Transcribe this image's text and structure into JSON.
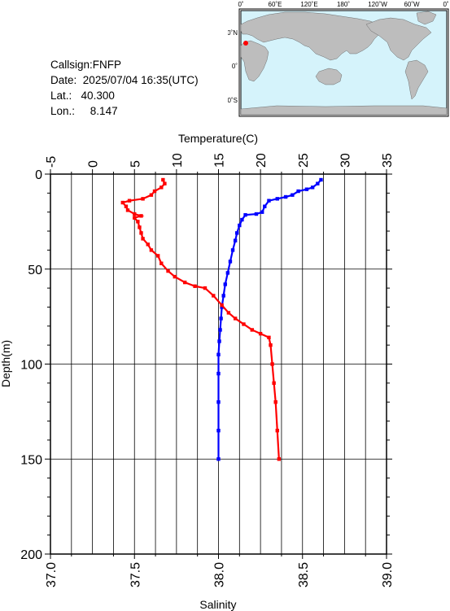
{
  "station": {
    "callsign_line": "Callsign:FNFP",
    "date_label": "Date:",
    "date_value": "2025/07/04 16:35(UTC)",
    "lat_label": "Lat.:",
    "lat_value": "40.300",
    "lon_label": "Lon.:",
    "lon_value": "8.147"
  },
  "map": {
    "top_labels": [
      "0˚",
      "60˚E",
      "120˚E",
      "180˚",
      "120˚W",
      "60˚W",
      "0˚"
    ],
    "lat_labels": [
      "60˚N",
      "0˚",
      "60˚S"
    ],
    "ocean_color": "#d5f3fb",
    "land_color": "#bdbdbd",
    "marker_color": "#ff0000"
  },
  "chart_data": {
    "type": "line",
    "ylabel": "Depth(m)",
    "ylim": [
      200,
      0
    ],
    "yticks": [
      0,
      50,
      100,
      150,
      200
    ],
    "top_axis": {
      "xlabel": "Temperature(C)",
      "xlim": [
        -5,
        35
      ],
      "xticks": [
        -5,
        0,
        5,
        10,
        15,
        20,
        25,
        30,
        35
      ]
    },
    "bottom_axis": {
      "xlabel": "Salinity",
      "xlim": [
        37.0,
        39.0
      ],
      "xticks": [
        "37.0",
        "37.5",
        "38.0",
        "38.5",
        "39.0"
      ]
    },
    "grid": true,
    "series": [
      {
        "color": "#0000ff",
        "axis": "top",
        "points": [
          [
            27.2,
            3
          ],
          [
            26.8,
            5
          ],
          [
            26.2,
            7
          ],
          [
            25.5,
            8
          ],
          [
            24.5,
            9
          ],
          [
            23.8,
            11
          ],
          [
            23.0,
            12
          ],
          [
            22.0,
            13
          ],
          [
            21.0,
            14
          ],
          [
            20.5,
            17
          ],
          [
            20.2,
            20
          ],
          [
            19.5,
            21
          ],
          [
            18.2,
            21.5
          ],
          [
            17.8,
            24
          ],
          [
            17.5,
            27
          ],
          [
            17.2,
            31
          ],
          [
            17.0,
            35
          ],
          [
            16.7,
            40
          ],
          [
            16.4,
            46
          ],
          [
            16.1,
            52
          ],
          [
            15.8,
            58
          ],
          [
            15.6,
            64
          ],
          [
            15.4,
            70
          ],
          [
            15.3,
            76
          ],
          [
            15.2,
            82
          ],
          [
            15.1,
            88
          ],
          [
            15.0,
            95
          ],
          [
            15.0,
            105
          ],
          [
            15.0,
            120
          ],
          [
            15.0,
            135
          ],
          [
            15.0,
            150
          ]
        ]
      },
      {
        "color": "#ff0000",
        "axis": "bottom",
        "points": [
          [
            37.67,
            3
          ],
          [
            37.68,
            5
          ],
          [
            37.66,
            7
          ],
          [
            37.62,
            9
          ],
          [
            37.6,
            11
          ],
          [
            37.55,
            13
          ],
          [
            37.47,
            14
          ],
          [
            37.43,
            15
          ],
          [
            37.45,
            17
          ],
          [
            37.46,
            19
          ],
          [
            37.5,
            21
          ],
          [
            37.54,
            22
          ],
          [
            37.5,
            23
          ],
          [
            37.52,
            25
          ],
          [
            37.53,
            28
          ],
          [
            37.54,
            31
          ],
          [
            37.55,
            34
          ],
          [
            37.58,
            37
          ],
          [
            37.6,
            40
          ],
          [
            37.64,
            43
          ],
          [
            37.66,
            47
          ],
          [
            37.7,
            51
          ],
          [
            37.74,
            54
          ],
          [
            37.8,
            57
          ],
          [
            37.86,
            59
          ],
          [
            37.92,
            60
          ],
          [
            37.97,
            64
          ],
          [
            38.02,
            69
          ],
          [
            38.06,
            73
          ],
          [
            38.1,
            76
          ],
          [
            38.15,
            79
          ],
          [
            38.2,
            82
          ],
          [
            38.25,
            84
          ],
          [
            38.3,
            86
          ],
          [
            38.31,
            90
          ],
          [
            38.32,
            100
          ],
          [
            38.33,
            110
          ],
          [
            38.34,
            120
          ],
          [
            38.35,
            135
          ],
          [
            38.36,
            150
          ]
        ]
      }
    ]
  }
}
